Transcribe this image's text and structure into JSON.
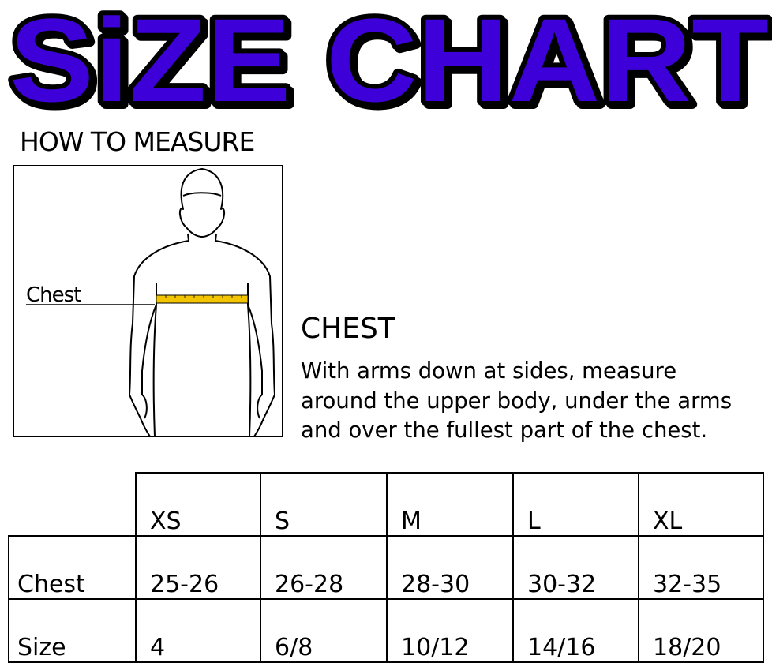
{
  "title": "SiZE CHART",
  "how_to_measure": "HOW TO MEASURE",
  "figure": {
    "label": "Chest",
    "tape_color": "#f2c500"
  },
  "chest": {
    "heading": "CHEST",
    "description": [
      "With arms down at sides, measure",
      "around the upper body, under the arms",
      "and over the fullest part of the chest."
    ]
  },
  "colors": {
    "title_fill": "#3d00d8",
    "title_outline": "#000000"
  },
  "table": {
    "columns": [
      "XS",
      "S",
      "M",
      "L",
      "XL"
    ],
    "rows": [
      {
        "label": "Chest",
        "values": [
          "25-26",
          "26-28",
          "28-30",
          "30-32",
          "32-35"
        ]
      },
      {
        "label": "Size",
        "values": [
          "4",
          "6/8",
          "10/12",
          "14/16",
          "18/20"
        ]
      }
    ]
  }
}
